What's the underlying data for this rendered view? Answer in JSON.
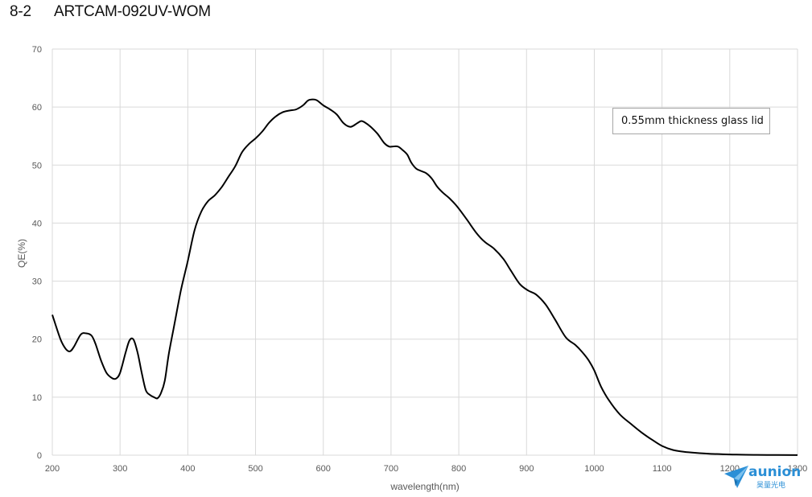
{
  "figure": {
    "number": "8-2",
    "model": "ARTCAM-092UV-WOM"
  },
  "chart_data": {
    "type": "line",
    "title": "",
    "xlabel": "wavelength(nm)",
    "ylabel": "QE(%)",
    "xlim": [
      200,
      1300
    ],
    "ylim": [
      0,
      70
    ],
    "xticks": [
      200,
      300,
      400,
      500,
      600,
      700,
      800,
      900,
      1000,
      1100,
      1200,
      1300
    ],
    "yticks": [
      0,
      10,
      20,
      30,
      40,
      50,
      60,
      70
    ],
    "grid": true,
    "annotation": "0.55mm thickness glass lid",
    "series": [
      {
        "color": "#000000",
        "x": [
          200,
          212,
          220,
          226,
          232,
          242,
          250,
          258,
          264,
          272,
          280,
          288,
          294,
          300,
          308,
          314,
          320,
          326,
          332,
          338,
          344,
          350,
          355,
          360,
          366,
          372,
          380,
          390,
          400,
          410,
          420,
          430,
          440,
          450,
          460,
          470,
          480,
          490,
          500,
          510,
          520,
          530,
          540,
          550,
          560,
          570,
          577,
          582,
          590,
          600,
          610,
          620,
          630,
          640,
          650,
          656,
          662,
          670,
          680,
          690,
          697,
          702,
          710,
          717,
          724,
          730,
          737,
          744,
          752,
          760,
          768,
          776,
          786,
          798,
          812,
          826,
          838,
          852,
          866,
          878,
          890,
          902,
          914,
          928,
          942,
          958,
          972,
          982,
          992,
          1000,
          1010,
          1022,
          1038,
          1054,
          1070,
          1086,
          1100,
          1116,
          1132,
          1150,
          1170,
          1190,
          1210,
          1240,
          1270,
          1300
        ],
        "y": [
          24.2,
          20.0,
          18.3,
          17.9,
          18.7,
          20.8,
          21.0,
          20.6,
          19.1,
          16.3,
          14.2,
          13.3,
          13.2,
          14.2,
          17.6,
          19.8,
          19.9,
          17.6,
          14.2,
          11.2,
          10.4,
          10.0,
          9.8,
          10.6,
          12.8,
          17.5,
          22.4,
          28.5,
          33.5,
          38.8,
          42.0,
          43.8,
          44.8,
          46.2,
          48.0,
          49.8,
          52.2,
          53.6,
          54.6,
          55.8,
          57.3,
          58.4,
          59.1,
          59.4,
          59.6,
          60.3,
          61.1,
          61.3,
          61.2,
          60.3,
          59.6,
          58.7,
          57.2,
          56.6,
          57.2,
          57.6,
          57.3,
          56.6,
          55.4,
          53.8,
          53.2,
          53.2,
          53.2,
          52.6,
          51.8,
          50.4,
          49.4,
          49.0,
          48.6,
          47.7,
          46.3,
          45.3,
          44.3,
          42.8,
          40.6,
          38.3,
          36.8,
          35.6,
          33.8,
          31.6,
          29.5,
          28.4,
          27.7,
          26.0,
          23.4,
          20.3,
          19.0,
          17.8,
          16.3,
          14.6,
          11.8,
          9.4,
          7.0,
          5.4,
          3.9,
          2.6,
          1.6,
          0.9,
          0.6,
          0.4,
          0.25,
          0.15,
          0.1,
          0.05,
          0.03,
          0.02
        ]
      }
    ]
  },
  "logo": {
    "brand": "aunion",
    "subtitle": "昊量光电"
  }
}
